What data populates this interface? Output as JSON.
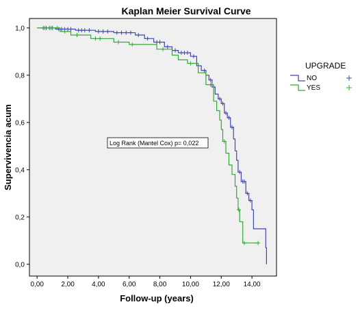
{
  "chart_data": {
    "type": "line",
    "title": "Kaplan Meier Survival Curve",
    "xlabel": "Follow-up (years)",
    "ylabel": "Supervivencia acum",
    "xlim": [
      -0.5,
      15.6
    ],
    "ylim": [
      -0.05,
      1.04
    ],
    "x_ticks": [
      0,
      2,
      4,
      6,
      8,
      10,
      12,
      14
    ],
    "x_tick_labels": [
      "0,00",
      "2,00",
      "4,00",
      "6,00",
      "8,00",
      "10,00",
      "12,00",
      "14,00"
    ],
    "y_ticks": [
      0,
      0.2,
      0.4,
      0.6,
      0.8,
      1.0
    ],
    "y_tick_labels": [
      "0,0",
      "0,2",
      "0,4",
      "0,6",
      "0,8",
      "1,0"
    ],
    "grid": false,
    "legend_placement": "right",
    "legend_title": "UPGRADE",
    "annotation": "Log Rank (Mantel Cox) p= 0,022",
    "series": [
      {
        "name": "NO",
        "color": "#3f48a8",
        "step_points": [
          [
            0,
            1.0
          ],
          [
            1.2,
            0.995
          ],
          [
            2.5,
            0.99
          ],
          [
            3.8,
            0.985
          ],
          [
            5.0,
            0.98
          ],
          [
            6.4,
            0.97
          ],
          [
            7.0,
            0.955
          ],
          [
            7.6,
            0.94
          ],
          [
            8.3,
            0.92
          ],
          [
            8.8,
            0.905
          ],
          [
            9.2,
            0.895
          ],
          [
            10.0,
            0.88
          ],
          [
            10.4,
            0.84
          ],
          [
            10.7,
            0.82
          ],
          [
            11.0,
            0.8
          ],
          [
            11.2,
            0.78
          ],
          [
            11.4,
            0.75
          ],
          [
            11.6,
            0.72
          ],
          [
            11.8,
            0.7
          ],
          [
            12.0,
            0.68
          ],
          [
            12.2,
            0.64
          ],
          [
            12.4,
            0.62
          ],
          [
            12.6,
            0.58
          ],
          [
            12.8,
            0.53
          ],
          [
            12.9,
            0.48
          ],
          [
            13.0,
            0.44
          ],
          [
            13.1,
            0.39
          ],
          [
            13.3,
            0.35
          ],
          [
            13.6,
            0.3
          ],
          [
            13.8,
            0.27
          ],
          [
            14.0,
            0.23
          ],
          [
            14.1,
            0.15
          ],
          [
            14.9,
            0.07
          ],
          [
            14.95,
            0.0
          ]
        ],
        "censored": [
          [
            0.4,
            1.0
          ],
          [
            0.6,
            1.0
          ],
          [
            0.8,
            1.0
          ],
          [
            1.0,
            1.0
          ],
          [
            1.4,
            0.995
          ],
          [
            1.6,
            0.995
          ],
          [
            1.8,
            0.995
          ],
          [
            2.0,
            0.995
          ],
          [
            2.2,
            0.995
          ],
          [
            2.7,
            0.99
          ],
          [
            2.9,
            0.99
          ],
          [
            3.1,
            0.99
          ],
          [
            3.4,
            0.99
          ],
          [
            4.0,
            0.985
          ],
          [
            4.3,
            0.985
          ],
          [
            4.6,
            0.985
          ],
          [
            5.2,
            0.98
          ],
          [
            5.5,
            0.98
          ],
          [
            5.8,
            0.98
          ],
          [
            6.1,
            0.98
          ],
          [
            6.6,
            0.97
          ],
          [
            7.2,
            0.955
          ],
          [
            7.8,
            0.94
          ],
          [
            8.0,
            0.94
          ],
          [
            8.5,
            0.92
          ],
          [
            9.0,
            0.905
          ],
          [
            9.4,
            0.895
          ],
          [
            9.6,
            0.895
          ],
          [
            9.8,
            0.895
          ],
          [
            10.2,
            0.88
          ],
          [
            10.5,
            0.84
          ],
          [
            10.9,
            0.82
          ],
          [
            11.3,
            0.78
          ],
          [
            11.5,
            0.75
          ],
          [
            11.9,
            0.7
          ],
          [
            12.1,
            0.68
          ],
          [
            12.3,
            0.64
          ],
          [
            12.5,
            0.62
          ],
          [
            12.7,
            0.58
          ],
          [
            13.2,
            0.39
          ],
          [
            13.4,
            0.35
          ],
          [
            13.5,
            0.35
          ],
          [
            13.7,
            0.3
          ],
          [
            13.9,
            0.27
          ]
        ]
      },
      {
        "name": "YES",
        "color": "#33a833",
        "step_points": [
          [
            0,
            1.0
          ],
          [
            1.5,
            0.985
          ],
          [
            2.2,
            0.97
          ],
          [
            3.5,
            0.955
          ],
          [
            5.0,
            0.94
          ],
          [
            6.0,
            0.93
          ],
          [
            7.8,
            0.91
          ],
          [
            8.8,
            0.885
          ],
          [
            9.2,
            0.865
          ],
          [
            9.8,
            0.85
          ],
          [
            10.5,
            0.81
          ],
          [
            11.0,
            0.76
          ],
          [
            11.5,
            0.69
          ],
          [
            11.7,
            0.65
          ],
          [
            11.9,
            0.61
          ],
          [
            12.0,
            0.57
          ],
          [
            12.1,
            0.52
          ],
          [
            12.3,
            0.47
          ],
          [
            12.5,
            0.42
          ],
          [
            12.7,
            0.38
          ],
          [
            12.9,
            0.33
          ],
          [
            13.0,
            0.28
          ],
          [
            13.1,
            0.23
          ],
          [
            13.2,
            0.18
          ],
          [
            13.4,
            0.09
          ],
          [
            14.4,
            0.09
          ]
        ],
        "censored": [
          [
            0.5,
            1.0
          ],
          [
            0.9,
            1.0
          ],
          [
            1.3,
            1.0
          ],
          [
            1.8,
            0.985
          ],
          [
            2.6,
            0.97
          ],
          [
            3.8,
            0.955
          ],
          [
            4.1,
            0.955
          ],
          [
            5.3,
            0.94
          ],
          [
            6.2,
            0.93
          ],
          [
            8.2,
            0.91
          ],
          [
            10.0,
            0.85
          ],
          [
            11.3,
            0.76
          ],
          [
            12.2,
            0.52
          ],
          [
            13.15,
            0.18
          ],
          [
            13.5,
            0.09
          ],
          [
            14.4,
            0.09
          ]
        ]
      }
    ]
  }
}
